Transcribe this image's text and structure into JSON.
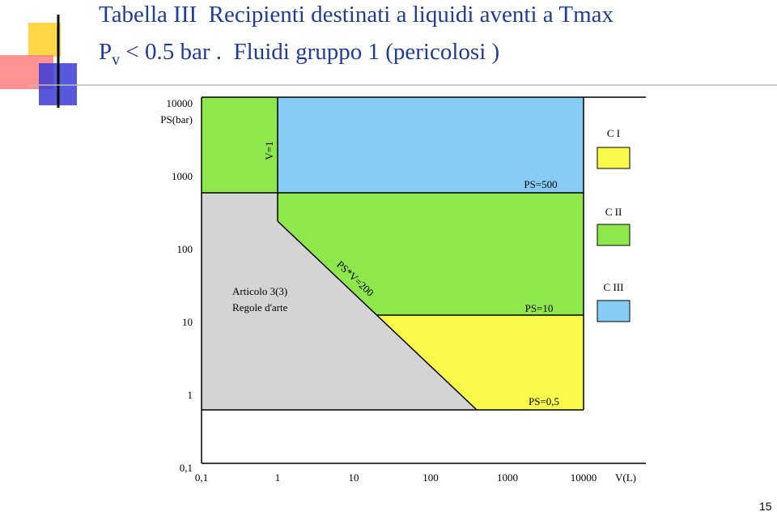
{
  "title": {
    "line1": "Tabella III  Recipienti destinati a liquidi aventi a Tmax",
    "line2_main": "P",
    "line2_sub": "v",
    "line2_rest": "< 0.5 bar .  Fluidi gruppo 1 (pericolosi )"
  },
  "diagram": {
    "y_axis": {
      "unit": "PS(bar)",
      "ticks": [
        "10000",
        "1000",
        "100",
        "10",
        "1",
        "0,1"
      ]
    },
    "x_axis": {
      "unit": "V(L)",
      "ticks": [
        "0,1",
        "1",
        "10",
        "100",
        "1000",
        "10000"
      ]
    },
    "boundaries": {
      "v1": "V=1",
      "ps500": "PS=500",
      "psv200": "PS*V=200",
      "ps10": "PS=10",
      "ps05": "PS=0,5"
    },
    "region_label": [
      "Articolo 3(3)",
      "Regole d'arte"
    ],
    "legend": [
      "C I",
      "C II",
      "C III"
    ]
  },
  "page_number": "15"
}
